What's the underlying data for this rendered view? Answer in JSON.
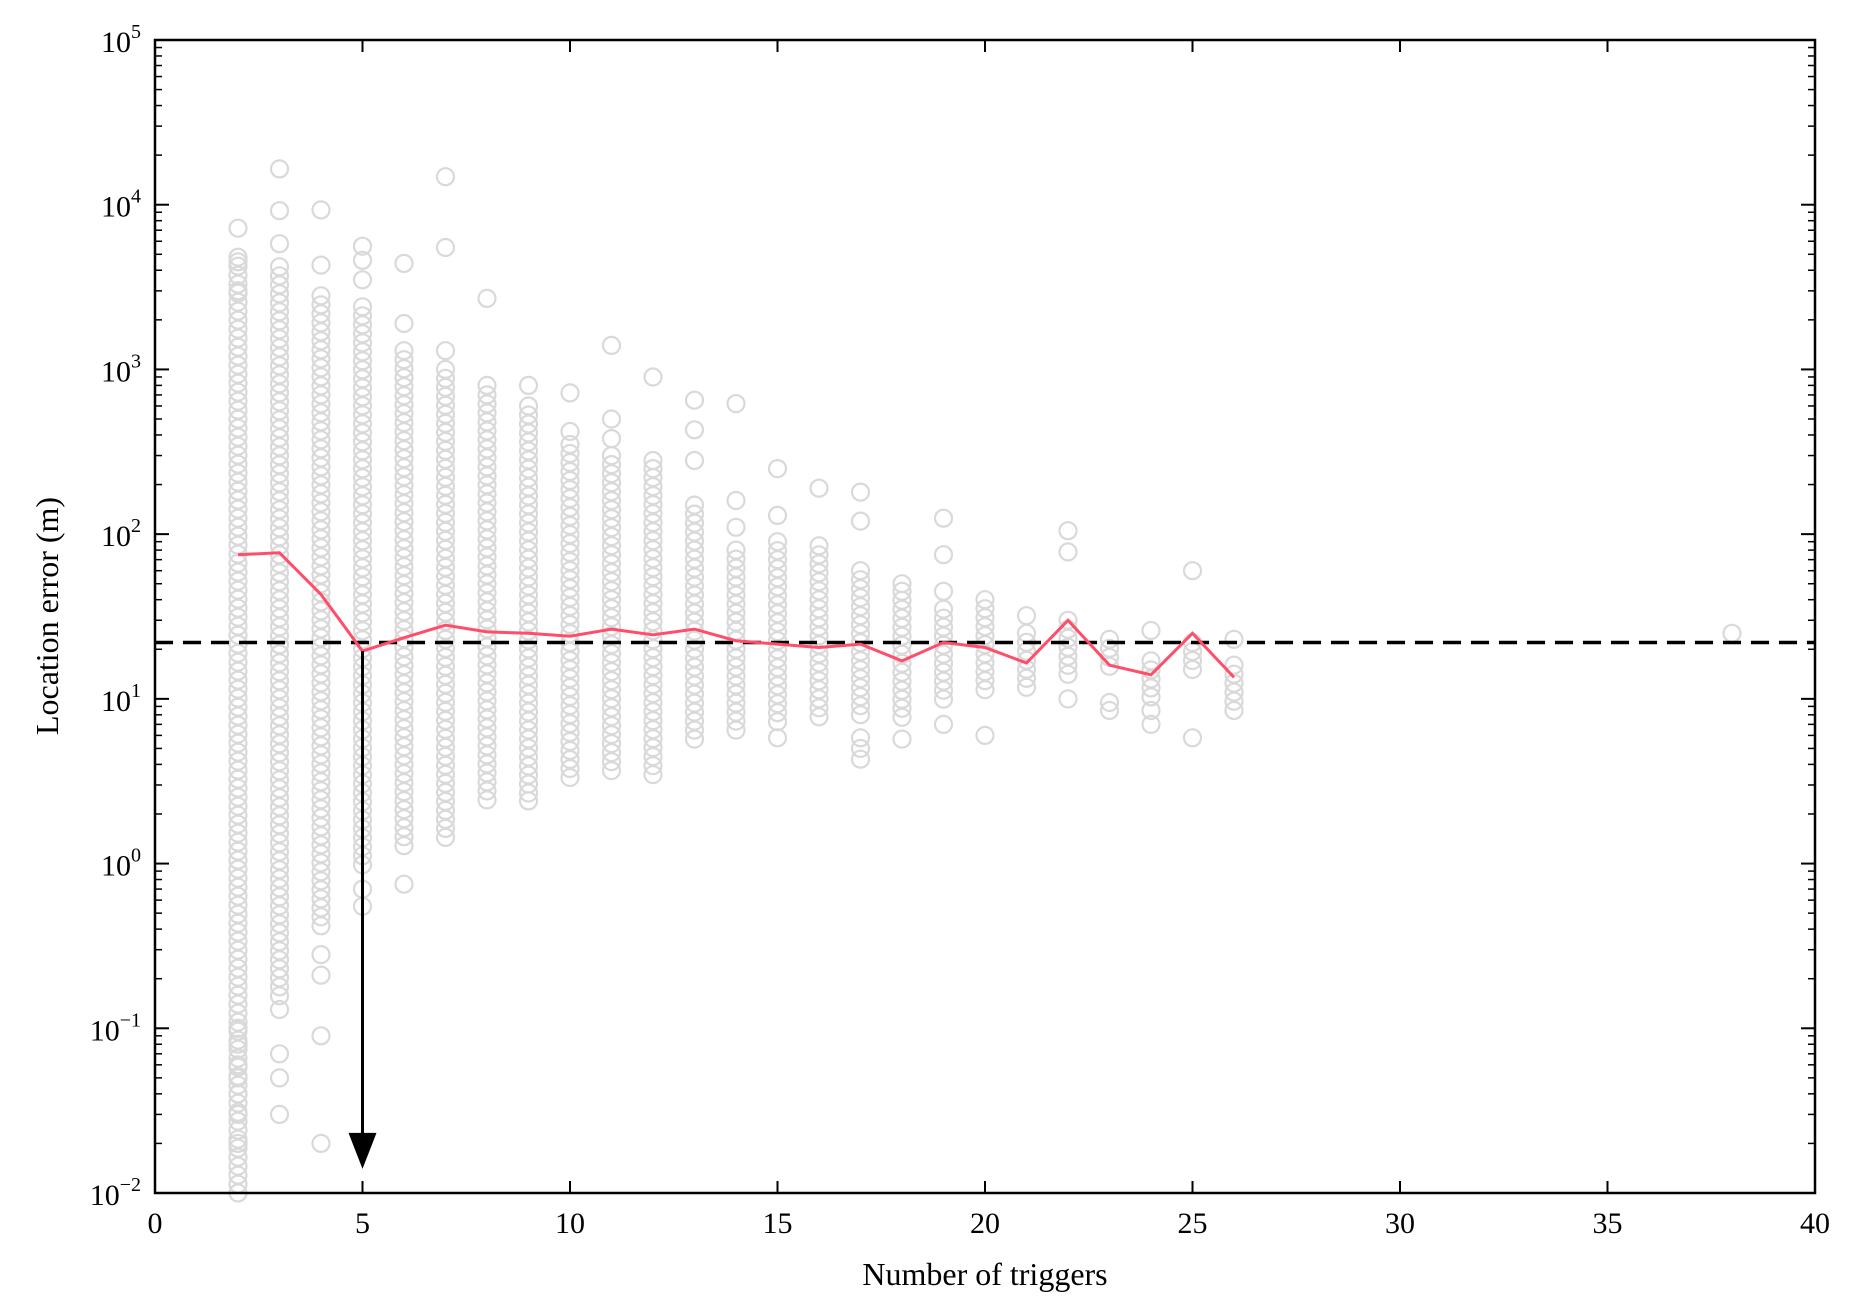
{
  "chart_data": {
    "type": "scatter",
    "title": "",
    "xlabel": "Number of triggers",
    "ylabel": "Location error (m)",
    "xlim": [
      0,
      40
    ],
    "ylim": [
      0.01,
      100000
    ],
    "y_scale": "log",
    "grid": false,
    "legend": "none",
    "x_ticks": [
      "0",
      "5",
      "10",
      "15",
      "20",
      "25",
      "30",
      "35",
      "40"
    ],
    "y_ticks": [
      {
        "base": "10",
        "exp": "−2"
      },
      {
        "base": "10",
        "exp": "−1"
      },
      {
        "base": "10",
        "exp": "0"
      },
      {
        "base": "10",
        "exp": "1"
      },
      {
        "base": "10",
        "exp": "2"
      },
      {
        "base": "10",
        "exp": "3"
      },
      {
        "base": "10",
        "exp": "4"
      },
      {
        "base": "10",
        "exp": "5"
      }
    ],
    "colors": {
      "points": "#d9d9d9",
      "median_line": "#ff4d6a",
      "threshold": "#000000",
      "arrow": "#000000"
    },
    "scatter_columns": [
      {
        "x": 2,
        "min": 0.01,
        "max": 4800,
        "outliers": [
          7200,
          4500,
          3000,
          0.1,
          0.08,
          0.06,
          0.05,
          0.04,
          0.03,
          0.02,
          0.01
        ]
      },
      {
        "x": 3,
        "min": 0.15,
        "max": 4200,
        "outliers": [
          16500,
          9200,
          5800,
          0.13,
          0.07,
          0.05,
          0.03
        ]
      },
      {
        "x": 4,
        "min": 0.4,
        "max": 2800,
        "outliers": [
          9300,
          4300,
          0.28,
          0.21,
          0.09,
          0.02
        ]
      },
      {
        "x": 5,
        "min": 0.9,
        "max": 2400,
        "outliers": [
          5600,
          4600,
          3500,
          0.7,
          0.55
        ]
      },
      {
        "x": 6,
        "min": 1.2,
        "max": 1300,
        "outliers": [
          4400,
          1900,
          0.75
        ]
      },
      {
        "x": 7,
        "min": 1.3,
        "max": 1000,
        "outliers": [
          14800,
          5500,
          1300
        ]
      },
      {
        "x": 8,
        "min": 2.2,
        "max": 700,
        "outliers": [
          2700,
          800
        ]
      },
      {
        "x": 9,
        "min": 2.6,
        "max": 600,
        "outliers": [
          800,
          2.4
        ]
      },
      {
        "x": 10,
        "min": 3.0,
        "max": 350,
        "outliers": [
          720,
          420
        ]
      },
      {
        "x": 11,
        "min": 3.6,
        "max": 300,
        "outliers": [
          1400,
          500,
          380
        ]
      },
      {
        "x": 12,
        "min": 3.2,
        "max": 250,
        "outliers": [
          900,
          280
        ]
      },
      {
        "x": 13,
        "min": 5.2,
        "max": 150,
        "outliers": [
          650,
          430,
          280
        ]
      },
      {
        "x": 14,
        "min": 6.0,
        "max": 80,
        "outliers": [
          620,
          160,
          110
        ]
      },
      {
        "x": 15,
        "min": 6.5,
        "max": 90,
        "outliers": [
          250,
          130,
          5.8
        ]
      },
      {
        "x": 16,
        "min": 7.0,
        "max": 85,
        "outliers": [
          190
        ]
      },
      {
        "x": 17,
        "min": 8.0,
        "max": 60,
        "outliers": [
          180,
          120,
          5.8,
          5.0,
          4.3
        ]
      },
      {
        "x": 18,
        "min": 7.5,
        "max": 45,
        "outliers": [
          50,
          5.7
        ]
      },
      {
        "x": 19,
        "min": 9.5,
        "max": 35,
        "outliers": [
          125,
          75,
          45,
          7.0
        ]
      },
      {
        "x": 20,
        "min": 11,
        "max": 40,
        "outliers": [
          6.0
        ]
      },
      {
        "x": 21,
        "min": 10.5,
        "max": 25,
        "outliers": [
          32
        ]
      },
      {
        "x": 22,
        "min": 13,
        "max": 30,
        "outliers": [
          105,
          78,
          10
        ]
      },
      {
        "x": 23,
        "min": 15,
        "max": 23,
        "outliers": [
          9.5,
          8.5
        ]
      },
      {
        "x": 24,
        "min": 10,
        "max": 17,
        "outliers": [
          26,
          8.5,
          7.0
        ]
      },
      {
        "x": 25,
        "min": 15,
        "max": 22,
        "outliers": [
          60,
          5.8
        ]
      },
      {
        "x": 26,
        "min": 9.5,
        "max": 16,
        "outliers": [
          23,
          8.5
        ]
      },
      {
        "x": 38,
        "min": 25,
        "max": 25,
        "outliers": []
      }
    ],
    "series": [
      {
        "x": [
          2,
          3,
          4,
          5,
          6,
          7,
          8,
          9,
          10,
          11,
          12,
          13,
          14,
          15,
          16,
          17,
          18,
          19,
          20,
          21,
          22,
          23,
          24,
          25,
          26
        ],
        "y": [
          75,
          77,
          43,
          19.5,
          23.5,
          28,
          25.5,
          25,
          24,
          26.5,
          24.5,
          26.5,
          22.5,
          21.5,
          20.5,
          21.5,
          17,
          22,
          20.5,
          16.5,
          30,
          16,
          14,
          25,
          13.5
        ]
      }
    ],
    "threshold_y": 22,
    "arrow": {
      "x": 5,
      "from_y": 19.5,
      "to_y": 0.014
    }
  }
}
